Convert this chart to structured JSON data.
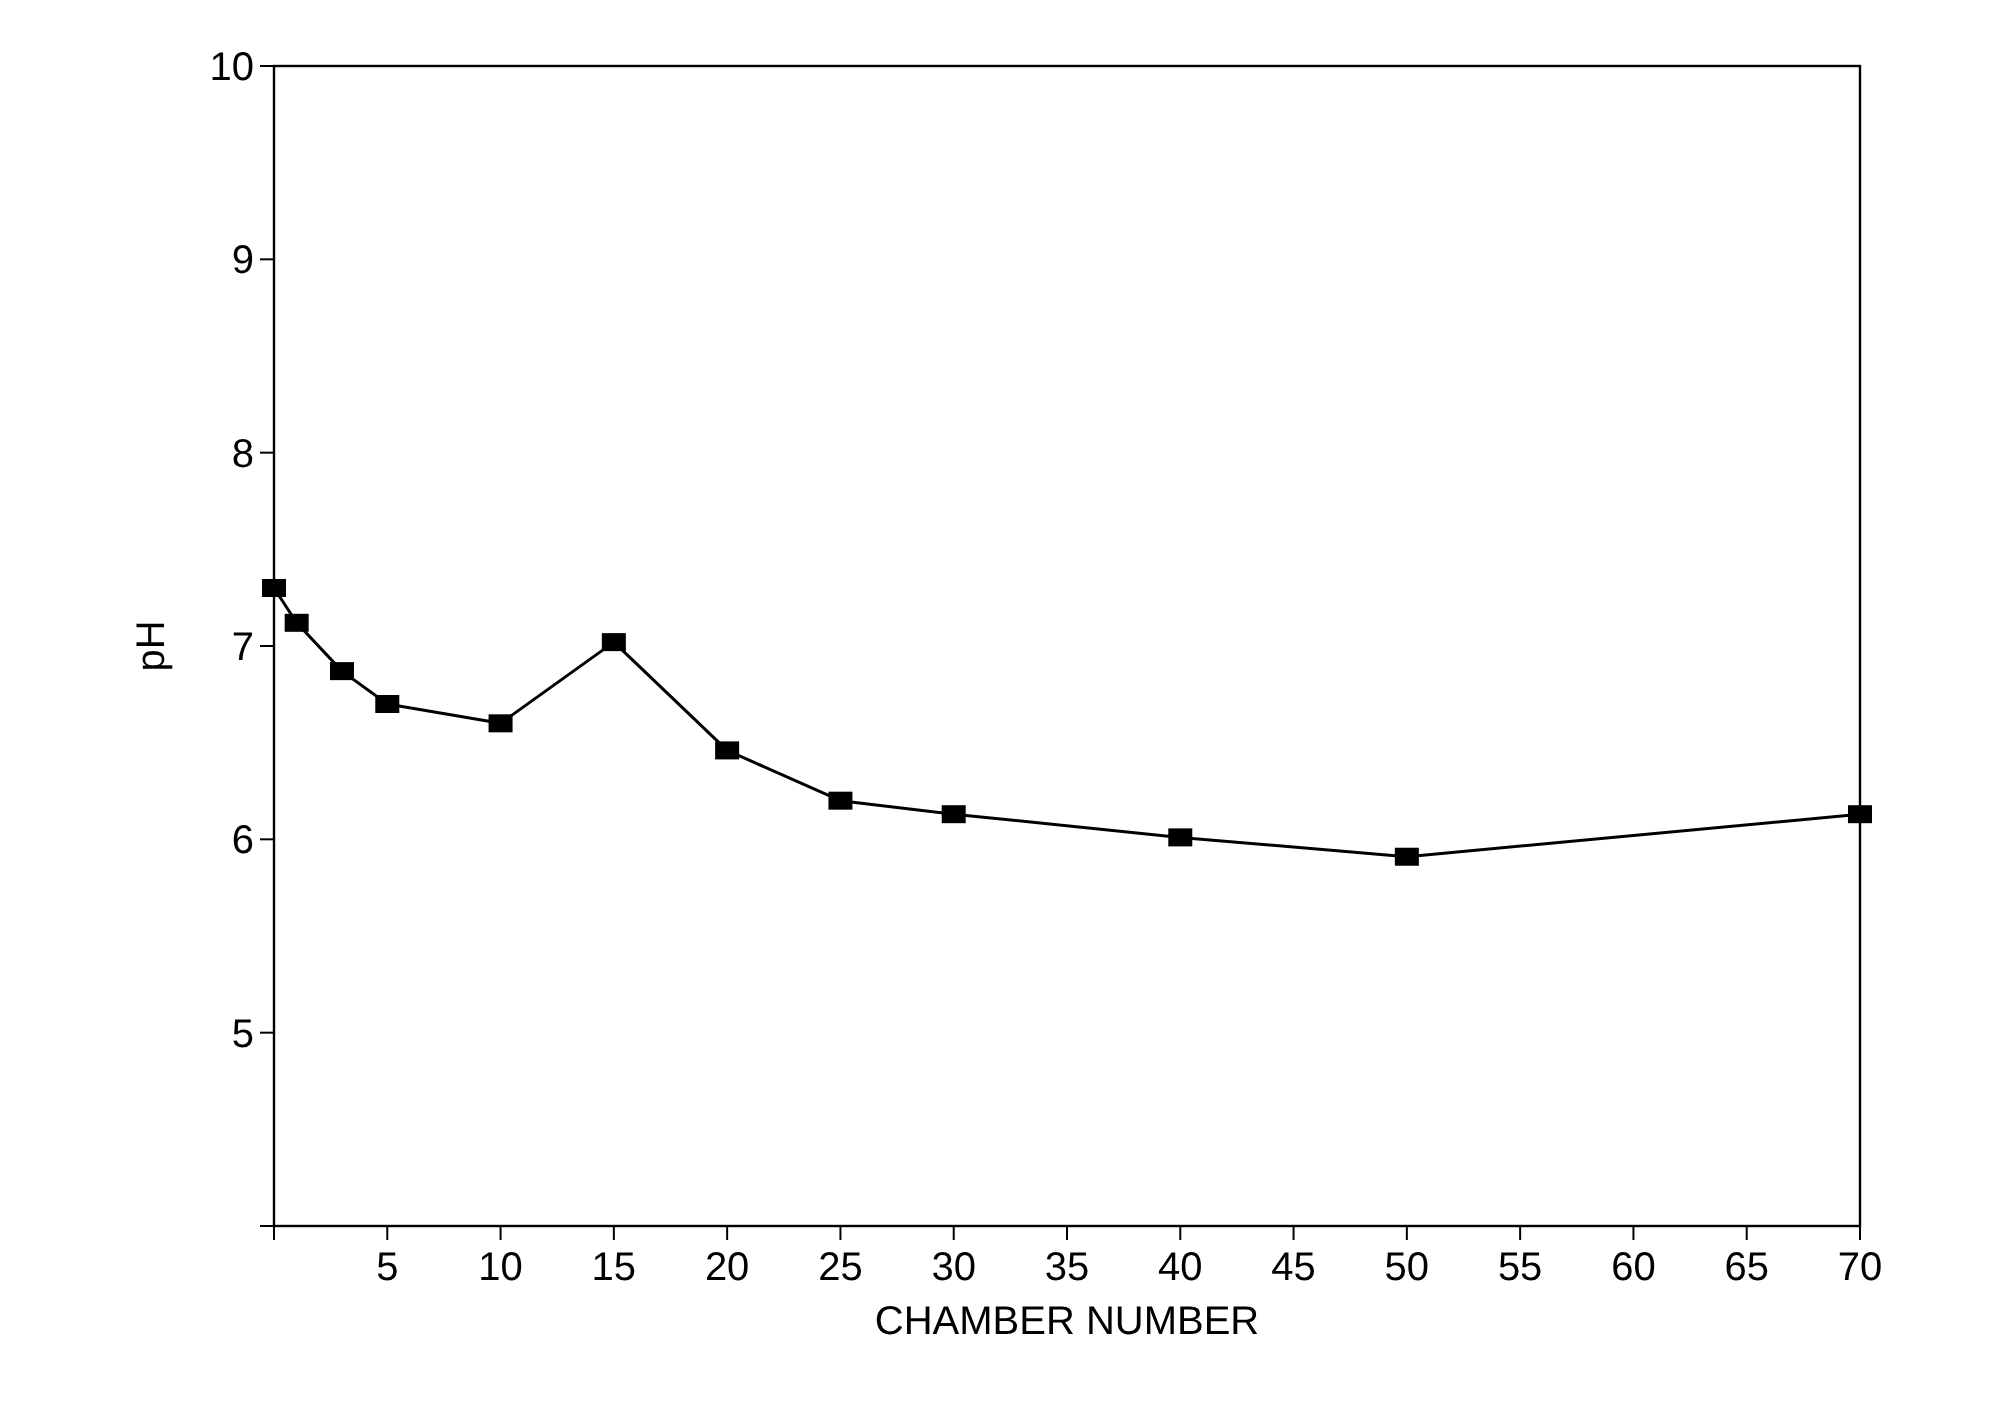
{
  "chart_data": {
    "type": "line",
    "xlabel": "CHAMBER NUMBER",
    "ylabel": "pH",
    "x": [
      0,
      1,
      3,
      5,
      10,
      15,
      20,
      25,
      30,
      40,
      50,
      70
    ],
    "series": [
      {
        "color": "#000000",
        "values": [
          7.3,
          7.12,
          6.87,
          6.7,
          6.6,
          7.02,
          6.46,
          6.2,
          6.13,
          6.01,
          5.91,
          6.13
        ]
      }
    ],
    "xlim": [
      0,
      70
    ],
    "ylim": [
      4,
      10
    ],
    "xticks": [
      {
        "value": 0,
        "label": null
      },
      5,
      10,
      15,
      20,
      25,
      30,
      35,
      40,
      45,
      50,
      55,
      60,
      65,
      70
    ],
    "yticks": [
      {
        "value": 4,
        "label": null
      },
      5,
      6,
      7,
      8,
      9,
      10
    ],
    "grid": false,
    "marker": "square",
    "line_style": "solid"
  }
}
